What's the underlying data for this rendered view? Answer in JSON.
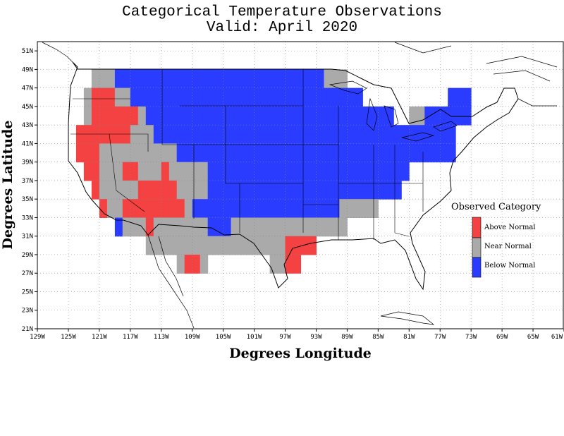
{
  "title": "Categorical Temperature Observations",
  "subtitle": "Valid: April 2020",
  "xlabel": "Degrees Longitude",
  "ylabel": "Degrees Latitude",
  "lon_ticks": [
    "129W",
    "125W",
    "121W",
    "117W",
    "113W",
    "109W",
    "105W",
    "101W",
    "97W",
    "93W",
    "89W",
    "85W",
    "81W",
    "77W",
    "73W",
    "69W",
    "65W",
    "61W"
  ],
  "lat_ticks": [
    "21N",
    "23N",
    "25N",
    "27N",
    "29N",
    "31N",
    "33N",
    "35N",
    "37N",
    "39N",
    "41N",
    "43N",
    "45N",
    "47N",
    "49N",
    "51N"
  ],
  "legend": {
    "title": "Observed Category",
    "items": [
      {
        "label": "Above Normal",
        "color": "#f44242"
      },
      {
        "label": "Near Normal",
        "color": "#aaaaaa"
      },
      {
        "label": "Below Normal",
        "color": "#2a3cff"
      }
    ]
  },
  "chart_data": {
    "type": "heatmap",
    "lon_range": [
      -129,
      -61
    ],
    "lat_range": [
      21,
      52
    ],
    "cell_size_deg": 2,
    "categories": {
      "A": "Above Normal",
      "N": "Near Normal",
      "B": "Below Normal"
    },
    "lon_min": -125,
    "lat_rows": [
      {
        "lat_top": 49,
        "row": "...NNNBBBBBBBBBBBBBBBBBBBBBBBBBBBNNN................"
      },
      {
        "lat_top": 47,
        "row": "..NAAANNBBBBBBBBBBBBBBBBBBBBBBBBBBBBBB...........BBB.."
      },
      {
        "lat_top": 45,
        "row": "..NAAAAAANBBBBBBBBBBBBBBBBBBBBBBBBBBBBBBBB..NNBBBBBB.."
      },
      {
        "lat_top": 43,
        "row": ".AAAAAAANNNBBBBBBBBBBBBBBBBBBBBBBBBBBBBBBBBBBBBBBB...."
      },
      {
        "lat_top": 41,
        "row": ".AAANNNNNNNNNNBBBBBBBBBBBBBBBBBBBBBBBBBBBBBBBBBBBB......"
      },
      {
        "lat_top": 39,
        "row": "..AANNNAANNNANNNNNBBBBBBBBBBBBBBBBBBBBBBBBBB........"
      },
      {
        "lat_top": 37,
        "row": "...ANNNNNAAAAANNNNBBBBBBBBBBBBBBBBBBBBBBBBB........"
      },
      {
        "lat_top": 35,
        "row": "....ANNAAAAAAAANBBBBBBBBBBBBBBBBBBBNNNNN........."
      },
      {
        "lat_top": 33,
        "row": "......BNNNANNNNNNNBBBNNNNNNNNNNNNNNN..........."
      },
      {
        "lat_top": 31,
        "row": "..........NNNNNNNNNNNNNNNNNNAAAA..........."
      },
      {
        "lat_top": 29,
        "row": "..............NAAN........NNAA..........."
      }
    ]
  }
}
